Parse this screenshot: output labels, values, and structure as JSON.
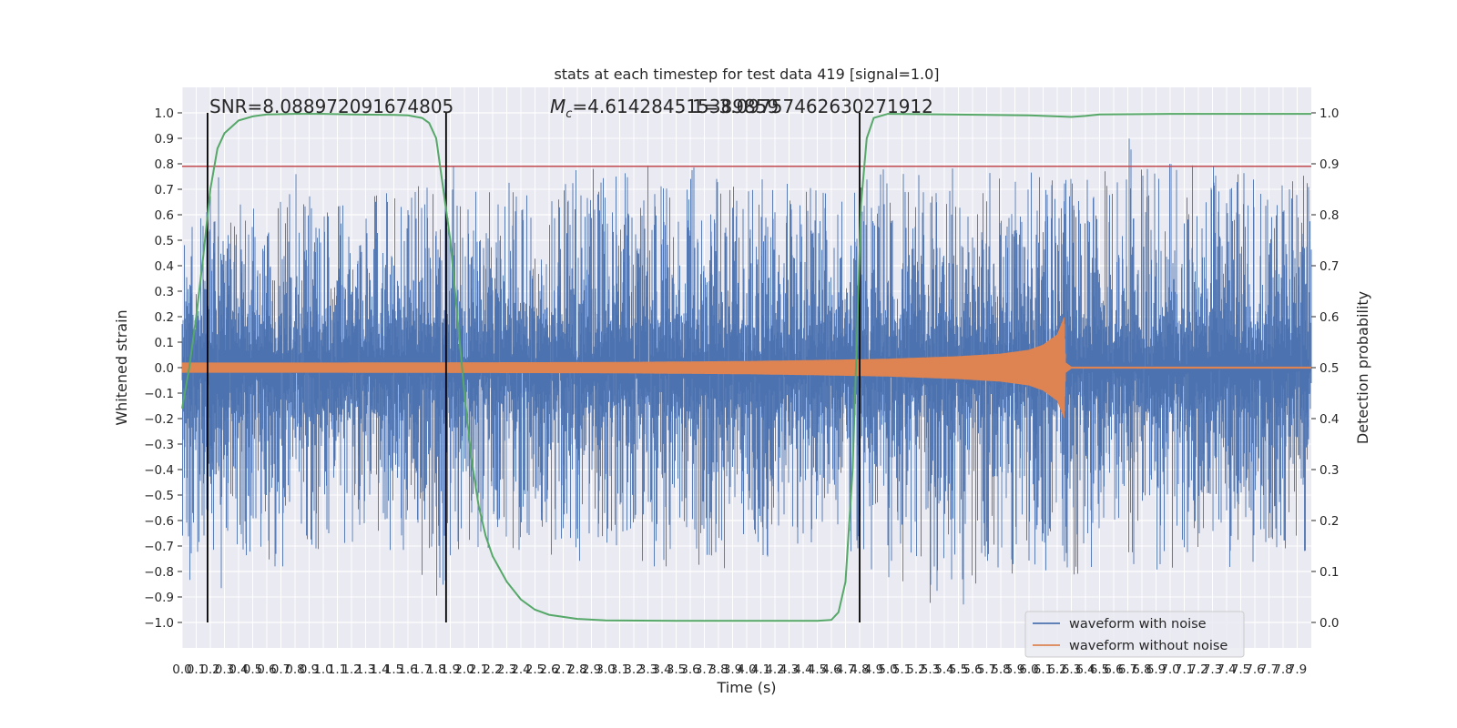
{
  "chart_data": {
    "type": "line",
    "title": "stats at each timestep for test data 419 [signal=1.0]",
    "xlabel": "Time (s)",
    "ylabel": "Whitened strain",
    "y2label": "Detection probability",
    "xlim": [
      0.0,
      8.0
    ],
    "ylim": [
      -1.1,
      1.1
    ],
    "y2lim": [
      -0.05,
      1.05
    ],
    "x_ticks": [
      "0.0",
      "0.1",
      "0.2",
      "0.3",
      "0.4",
      "0.5",
      "0.6",
      "0.7",
      "0.8",
      "0.9",
      "1.0",
      "1.1",
      "1.2",
      "1.3",
      "1.4",
      "1.5",
      "1.6",
      "1.7",
      "1.8",
      "1.9",
      "2.0",
      "2.1",
      "2.2",
      "2.3",
      "2.4",
      "2.5",
      "2.6",
      "2.7",
      "2.8",
      "2.9",
      "3.0",
      "3.1",
      "3.2",
      "3.3",
      "3.4",
      "3.5",
      "3.6",
      "3.7",
      "3.8",
      "3.9",
      "4.0",
      "4.1",
      "4.2",
      "4.3",
      "4.4",
      "4.5",
      "4.6",
      "4.7",
      "4.8",
      "4.9",
      "5.0",
      "5.1",
      "5.2",
      "5.3",
      "5.4",
      "5.5",
      "5.6",
      "5.7",
      "5.8",
      "5.9",
      "6.0",
      "6.1",
      "6.2",
      "6.3",
      "6.4",
      "6.5",
      "6.6",
      "6.7",
      "6.8",
      "6.9",
      "7.0",
      "7.1",
      "7.2",
      "7.3",
      "7.4",
      "7.5",
      "7.6",
      "7.7",
      "7.8",
      "7.9"
    ],
    "y_ticks": [
      "1.0",
      "0.9",
      "0.8",
      "0.7",
      "0.6",
      "0.5",
      "0.4",
      "0.3",
      "0.2",
      "0.1",
      "0.0",
      "−0.1",
      "−0.2",
      "−0.3",
      "−0.4",
      "−0.5",
      "−0.6",
      "−0.7",
      "−0.8",
      "−0.9",
      "−1.0"
    ],
    "y2_ticks": [
      "1.0",
      "0.9",
      "0.8",
      "0.7",
      "0.6",
      "0.5",
      "0.4",
      "0.3",
      "0.2",
      "0.1",
      "0.0"
    ],
    "annotations": {
      "snr": "SNR=8.088972091674805",
      "mc_symbol": "M",
      "mc_sub": "c",
      "mc_value": "=4.614284515389859",
      "mc_overlap": "1=3.09757462630271912"
    },
    "threshold": {
      "y": 0.79,
      "color": "#c44e52"
    },
    "vertical_lines": [
      0.18,
      1.87,
      4.8
    ],
    "series": [
      {
        "name": "waveform with noise",
        "color": "#4c72b0",
        "envelope_x": [
          0.0,
          0.25,
          0.5,
          0.75,
          1.0,
          1.25,
          1.5,
          1.75,
          1.9,
          2.0,
          2.5,
          3.0,
          3.5,
          3.8,
          4.0,
          4.5,
          4.9,
          5.0,
          5.5,
          5.6,
          6.0,
          6.5,
          6.75,
          7.0,
          7.5,
          8.0
        ],
        "envelope_upper": [
          0.6,
          0.75,
          0.65,
          0.8,
          0.62,
          0.65,
          0.7,
          0.78,
          0.92,
          0.7,
          0.74,
          0.8,
          0.79,
          0.78,
          0.75,
          0.7,
          0.78,
          0.8,
          0.78,
          0.8,
          0.77,
          0.73,
          0.99,
          0.8,
          0.78,
          0.75
        ],
        "envelope_lower": [
          -0.82,
          -0.9,
          -0.78,
          -0.78,
          -0.7,
          -0.68,
          -0.72,
          -0.95,
          -0.8,
          -0.7,
          -0.72,
          -0.78,
          -0.78,
          -0.84,
          -0.75,
          -0.72,
          -0.82,
          -0.82,
          -1.0,
          -0.9,
          -0.88,
          -0.82,
          -0.78,
          -0.8,
          -0.8,
          -0.75
        ]
      },
      {
        "name": "waveform without noise",
        "color": "#dd8452",
        "envelope_x": [
          0.0,
          1.0,
          2.0,
          3.0,
          4.0,
          4.5,
          5.0,
          5.5,
          5.8,
          6.0,
          6.1,
          6.2,
          6.25,
          6.26,
          6.3,
          8.0
        ],
        "amplitude": [
          0.02,
          0.02,
          0.021,
          0.022,
          0.026,
          0.03,
          0.035,
          0.045,
          0.055,
          0.07,
          0.09,
          0.13,
          0.2,
          0.02,
          0.004,
          0.004
        ]
      },
      {
        "name": "detection probability",
        "axis": "right",
        "color": "#55a868",
        "x": [
          0.0,
          0.05,
          0.1,
          0.15,
          0.2,
          0.25,
          0.3,
          0.4,
          0.5,
          0.6,
          0.8,
          1.0,
          1.2,
          1.5,
          1.6,
          1.7,
          1.75,
          1.8,
          1.85,
          1.9,
          1.95,
          2.0,
          2.05,
          2.1,
          2.15,
          2.2,
          2.3,
          2.4,
          2.5,
          2.6,
          2.8,
          3.0,
          3.5,
          4.0,
          4.5,
          4.6,
          4.65,
          4.7,
          4.75,
          4.78,
          4.81,
          4.85,
          4.9,
          5.0,
          6.0,
          6.2,
          6.3,
          6.4,
          6.5,
          7.0,
          8.0
        ],
        "y": [
          0.42,
          0.5,
          0.6,
          0.72,
          0.85,
          0.93,
          0.96,
          0.985,
          0.993,
          0.997,
          0.998,
          0.998,
          0.997,
          0.996,
          0.995,
          0.99,
          0.98,
          0.95,
          0.85,
          0.75,
          0.6,
          0.45,
          0.32,
          0.23,
          0.17,
          0.13,
          0.08,
          0.045,
          0.025,
          0.015,
          0.007,
          0.004,
          0.003,
          0.003,
          0.003,
          0.005,
          0.02,
          0.08,
          0.3,
          0.55,
          0.82,
          0.95,
          0.99,
          0.998,
          0.995,
          0.993,
          0.992,
          0.994,
          0.997,
          0.998,
          0.998
        ]
      }
    ],
    "legend": {
      "position": "lower-right",
      "items": [
        "waveform with noise",
        "waveform without noise"
      ]
    },
    "grid": true
  }
}
